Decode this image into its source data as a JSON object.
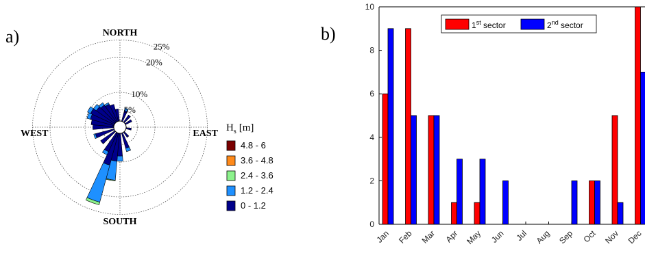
{
  "panel_labels": {
    "a": "a)",
    "b": "b)"
  },
  "chart_data": [
    {
      "type": "rose",
      "title": "",
      "compass": {
        "north": "NORTH",
        "south": "SOUTH",
        "east": "EAST",
        "west": "WEST"
      },
      "ring_labels": [
        "5%",
        "10%",
        "20%",
        "25%"
      ],
      "rings": [
        5,
        10,
        20,
        25
      ],
      "legend": {
        "title_main": "H",
        "title_sub": "s",
        "title_unit": "[m]",
        "items": [
          {
            "label": "4.8 - 6",
            "color": "#7a0000"
          },
          {
            "label": "3.6 - 4.8",
            "color": "#ff8a1a"
          },
          {
            "label": "2.4 - 3.6",
            "color": "#8cf28c"
          },
          {
            "label": "1.2 - 2.4",
            "color": "#1e90ff"
          },
          {
            "label": "0 - 1.2",
            "color": "#00008b"
          }
        ]
      },
      "direction_unit": "degrees clockwise from north",
      "bin_width_deg": 10,
      "series": [
        {
          "class": "0 - 1.2",
          "values": [
            {
              "dir": 20,
              "pct": 3.2
            },
            {
              "dir": 40,
              "pct": 2.5
            },
            {
              "dir": 60,
              "pct": 2.0
            },
            {
              "dir": 100,
              "pct": 1.5
            },
            {
              "dir": 140,
              "pct": 1.8
            },
            {
              "dir": 160,
              "pct": 4.5
            },
            {
              "dir": 180,
              "pct": 6.5
            },
            {
              "dir": 190,
              "pct": 8.0
            },
            {
              "dir": 200,
              "pct": 9.5
            },
            {
              "dir": 210,
              "pct": 6.0
            },
            {
              "dir": 230,
              "pct": 5.0
            },
            {
              "dir": 250,
              "pct": 5.5
            },
            {
              "dir": 270,
              "pct": 6.0
            },
            {
              "dir": 280,
              "pct": 6.5
            },
            {
              "dir": 290,
              "pct": 7.0
            },
            {
              "dir": 300,
              "pct": 7.5
            },
            {
              "dir": 310,
              "pct": 6.5
            },
            {
              "dir": 320,
              "pct": 6.0
            },
            {
              "dir": 330,
              "pct": 5.5
            },
            {
              "dir": 340,
              "pct": 5.0
            },
            {
              "dir": 350,
              "pct": 3.5
            }
          ]
        },
        {
          "class": "1.2 - 2.4",
          "values": [
            {
              "dir": 20,
              "pct": 0.7
            },
            {
              "dir": 160,
              "pct": 1.0
            },
            {
              "dir": 180,
              "pct": 1.5
            },
            {
              "dir": 190,
              "pct": 5.5
            },
            {
              "dir": 200,
              "pct": 11.0
            },
            {
              "dir": 210,
              "pct": 1.0
            },
            {
              "dir": 250,
              "pct": 0.5
            },
            {
              "dir": 290,
              "pct": 1.0
            },
            {
              "dir": 300,
              "pct": 1.0
            },
            {
              "dir": 310,
              "pct": 1.0
            },
            {
              "dir": 320,
              "pct": 0.8
            },
            {
              "dir": 330,
              "pct": 0.5
            }
          ]
        },
        {
          "class": "2.4 - 3.6",
          "values": [
            {
              "dir": 190,
              "pct": 0.2
            },
            {
              "dir": 200,
              "pct": 0.8
            }
          ]
        },
        {
          "class": "3.6 - 4.8",
          "values": []
        },
        {
          "class": "4.8 - 6",
          "values": []
        }
      ]
    },
    {
      "type": "bar",
      "title": "",
      "xlabel": "",
      "ylabel": "",
      "categories": [
        "Jan",
        "Feb",
        "Mar",
        "Apr",
        "May",
        "Jun",
        "Jul",
        "Aug",
        "Sep",
        "Oct",
        "Nov",
        "Dec"
      ],
      "ylim": [
        0,
        10
      ],
      "yticks": [
        "0",
        "2",
        "4",
        "6",
        "8",
        "10"
      ],
      "grid": false,
      "legend_position": "top-center",
      "series": [
        {
          "name": "1",
          "name_sup": "st",
          "name_tail": " sector",
          "color": "#ff0000",
          "values": [
            6,
            9,
            5,
            1,
            1,
            0,
            0,
            0,
            0,
            2,
            5,
            10
          ]
        },
        {
          "name": "2",
          "name_sup": "nd",
          "name_tail": " sector",
          "color": "#0000ff",
          "values": [
            9,
            5,
            5,
            3,
            3,
            2,
            0,
            0,
            2,
            2,
            1,
            7
          ]
        }
      ]
    }
  ]
}
